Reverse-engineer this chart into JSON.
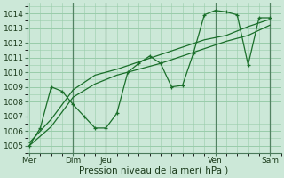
{
  "bg_color": "#cce8d8",
  "grid_color": "#99ccaa",
  "line_color": "#1a6e2a",
  "spine_color": "#4a7a5a",
  "ylim": [
    1004.5,
    1014.7
  ],
  "yticks": [
    1005,
    1006,
    1007,
    1008,
    1009,
    1010,
    1011,
    1012,
    1013,
    1014
  ],
  "xlabel": "Pression niveau de la mer( hPa )",
  "xlabel_fontsize": 7.5,
  "tick_fontsize": 6.5,
  "series1_x": [
    0.0,
    0.5,
    1.0,
    1.5,
    2.0,
    2.5,
    3.0,
    3.5,
    4.0,
    4.5,
    5.0,
    5.5,
    6.0,
    6.5,
    7.0,
    7.5,
    8.0,
    8.5,
    9.0,
    9.5,
    10.0,
    10.5,
    11.0
  ],
  "series1_y": [
    1005.0,
    1006.2,
    1009.0,
    1008.7,
    1007.8,
    1007.0,
    1006.2,
    1006.2,
    1007.2,
    1010.0,
    1010.6,
    1011.1,
    1010.6,
    1009.0,
    1009.1,
    1011.3,
    1013.9,
    1014.2,
    1014.1,
    1013.9,
    1010.5,
    1013.7,
    1013.7
  ],
  "series2_x": [
    0.0,
    1.0,
    2.0,
    3.0,
    4.0,
    5.0,
    6.0,
    7.0,
    8.0,
    9.0,
    10.0,
    11.0
  ],
  "series2_y": [
    1005.2,
    1006.8,
    1008.8,
    1009.8,
    1010.2,
    1010.7,
    1011.2,
    1011.7,
    1012.2,
    1012.5,
    1013.1,
    1013.6
  ],
  "series3_x": [
    0.0,
    1.0,
    2.0,
    3.0,
    4.0,
    5.0,
    6.0,
    7.0,
    8.0,
    9.0,
    10.0,
    11.0
  ],
  "series3_y": [
    1005.0,
    1006.3,
    1008.3,
    1009.2,
    1009.8,
    1010.2,
    1010.6,
    1011.1,
    1011.6,
    1012.1,
    1012.5,
    1013.2
  ],
  "xlim": [
    -0.1,
    11.5
  ],
  "vline_x": [
    2.0,
    3.5,
    8.5,
    11.0
  ],
  "xtick_positions": [
    0.0,
    2.0,
    3.5,
    8.5,
    11.0
  ],
  "xtick_labels": [
    "Mer",
    "Dim",
    "Jeu",
    "Ven",
    "Sam"
  ]
}
